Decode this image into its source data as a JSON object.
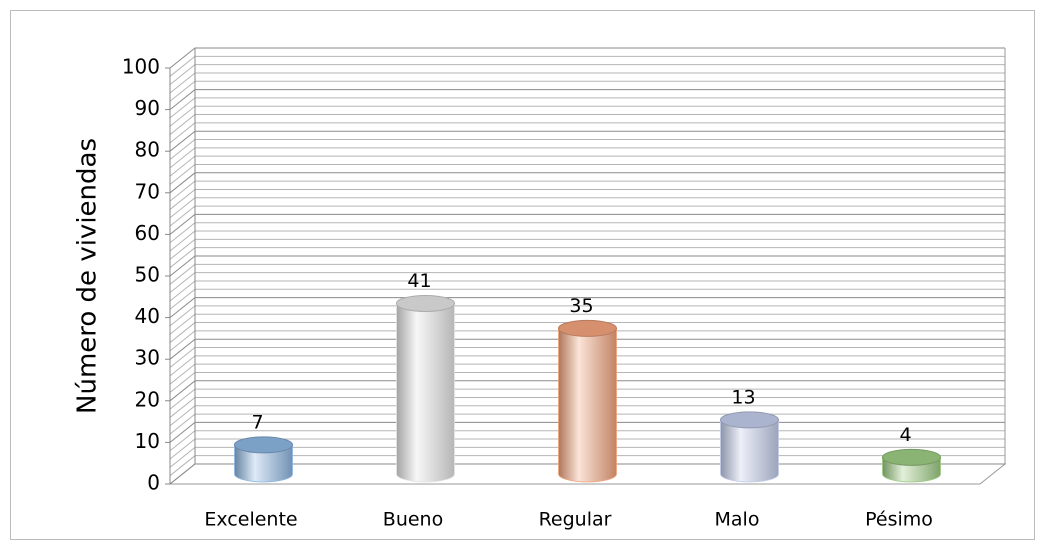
{
  "chart_data": {
    "type": "bar3d",
    "ylabel": "Número de viviendas",
    "categories": [
      "Excelente",
      "Bueno",
      "Regular",
      "Malo",
      "Pésimo"
    ],
    "values": [
      7,
      41,
      35,
      13,
      4
    ],
    "colors": [
      "#8db7e2",
      "#e4e4e4",
      "#f3a47d",
      "#c2cdea",
      "#9dcc83"
    ],
    "ylim": [
      0,
      100
    ],
    "yticks": [
      0,
      10,
      20,
      30,
      40,
      50,
      60,
      70,
      80,
      90,
      100
    ],
    "grid": true
  }
}
